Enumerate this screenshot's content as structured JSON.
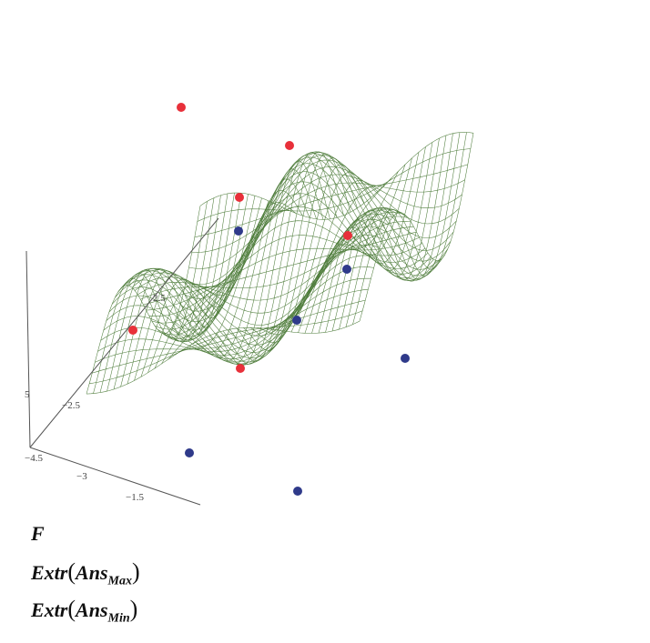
{
  "plot": {
    "axis_labels": [
      "−2.5",
      "−3",
      "−1.5",
      "2.5",
      "5",
      "−4.5"
    ]
  },
  "expressions": [
    {
      "name": "F"
    },
    {
      "function": "Extr",
      "argument": "Ans",
      "subscript": "Max"
    },
    {
      "function": "Extr",
      "argument": "Ans",
      "subscript": "Min"
    }
  ]
}
